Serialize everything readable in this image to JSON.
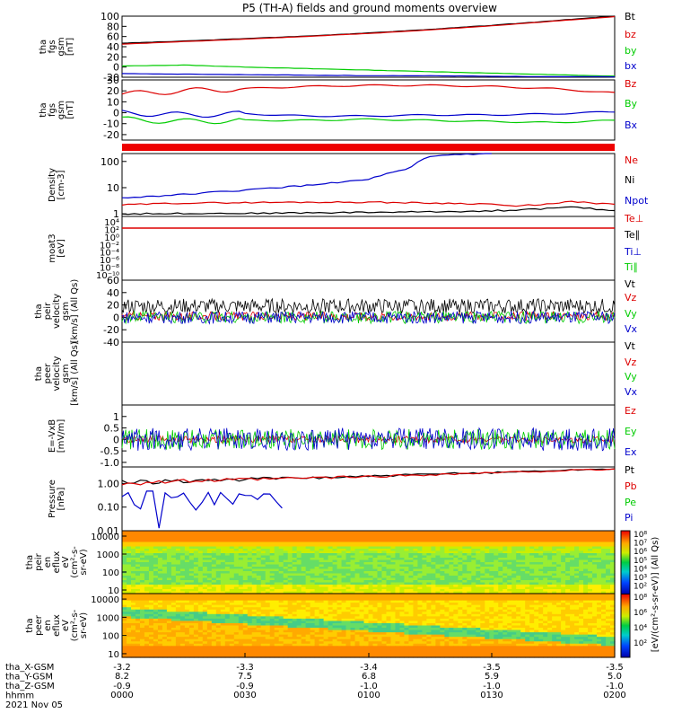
{
  "title": "P5 (TH-A) fields and ground moments overview",
  "chart_data": [
    {
      "type": "line",
      "ylabel": [
        "tha",
        "fgs",
        "gsm",
        "[nT]"
      ],
      "ylim": [
        -20,
        100
      ],
      "yticks": [
        100,
        80,
        60,
        40,
        20,
        0,
        -20
      ],
      "series": [
        {
          "name": "Bt",
          "color": "#000000",
          "x": [
            0,
            15,
            30,
            45,
            60,
            75,
            90,
            105,
            120
          ],
          "y": [
            47,
            51,
            56,
            61,
            67,
            74,
            82,
            91,
            100
          ]
        },
        {
          "name": "bz",
          "color": "#dd0000",
          "x": [
            0,
            15,
            30,
            45,
            60,
            75,
            90,
            105,
            120
          ],
          "y": [
            45,
            50,
            55,
            60,
            66,
            73,
            81,
            90,
            99
          ]
        },
        {
          "name": "by",
          "color": "#00cc00",
          "x": [
            0,
            15,
            30,
            45,
            60,
            75,
            90,
            105,
            120
          ],
          "y": [
            2,
            4,
            0,
            -3,
            -6,
            -9,
            -12,
            -15,
            -18
          ]
        },
        {
          "name": "bx",
          "color": "#0000cc",
          "x": [
            0,
            15,
            30,
            45,
            60,
            75,
            90,
            105,
            120
          ],
          "y": [
            -13,
            -14,
            -15,
            -16,
            -17,
            -17,
            -18,
            -19,
            -19
          ]
        }
      ]
    },
    {
      "type": "line",
      "ylabel": [
        "tha",
        "fgs",
        "gsm",
        "[nT]"
      ],
      "ylim": [
        -25,
        30
      ],
      "yticks": [
        30,
        20,
        10,
        0,
        -10,
        -20
      ],
      "series": [
        {
          "name": "Bz",
          "color": "#dd0000",
          "x": [
            0,
            15,
            30,
            45,
            60,
            75,
            90,
            105,
            120
          ],
          "y": [
            17,
            20,
            22,
            24,
            25,
            25,
            24,
            22,
            18
          ]
        },
        {
          "name": "By",
          "color": "#00cc00",
          "x": [
            0,
            15,
            30,
            45,
            60,
            75,
            90,
            105,
            120
          ],
          "y": [
            -6,
            -8,
            -7,
            -7,
            -6,
            -7,
            -8,
            -9,
            -7
          ]
        },
        {
          "name": "Bx",
          "color": "#0000cc",
          "x": [
            0,
            15,
            30,
            45,
            60,
            75,
            90,
            105,
            120
          ],
          "y": [
            0,
            -2,
            -1,
            -3,
            -3,
            -2,
            -2,
            -1,
            1
          ]
        }
      ]
    },
    {
      "type": "line",
      "scale": "log",
      "ylabel": [
        "Density",
        "[cm-3]"
      ],
      "ylim": [
        0.8,
        200
      ],
      "yticks": [
        100,
        10,
        1
      ],
      "ytick_labels": [
        "100",
        "10",
        "1"
      ],
      "series": [
        {
          "name": "Ne",
          "color": "#dd0000",
          "x": [
            0,
            15,
            30,
            45,
            60,
            75,
            90,
            95,
            100,
            105,
            110,
            115,
            120
          ],
          "y": [
            2.2,
            2.6,
            2.7,
            2.8,
            2.8,
            2.6,
            2.4,
            1.9,
            2.2,
            2.4,
            3.0,
            2.5,
            2.3
          ]
        },
        {
          "name": "Ni",
          "color": "#000000",
          "x": [
            0,
            15,
            30,
            45,
            60,
            75,
            90,
            100,
            110,
            120
          ],
          "y": [
            1.0,
            1.05,
            1.05,
            1.1,
            1.15,
            1.2,
            1.3,
            1.5,
            1.8,
            1.3
          ]
        },
        {
          "name": "Npot",
          "color": "#0000cc",
          "x": [
            0,
            15,
            30,
            45,
            60,
            70,
            75,
            80,
            90
          ],
          "y": [
            4,
            5.5,
            8,
            12,
            20,
            50,
            150,
            180,
            200
          ]
        }
      ]
    },
    {
      "type": "line",
      "scale": "log",
      "ylabel": [
        "moat3",
        "[eV]"
      ],
      "ytick_labels": [
        "10⁴",
        "10²",
        "10⁰",
        "10⁻²",
        "10⁻⁴",
        "10⁻⁶",
        "10⁻⁸",
        "10⁻¹⁰"
      ],
      "series": [
        {
          "name": "Te⊥",
          "color": "#dd0000"
        },
        {
          "name": "Te∥",
          "color": "#000000"
        },
        {
          "name": "Ti⊥",
          "color": "#0000cc"
        },
        {
          "name": "Ti∥",
          "color": "#00cc00"
        }
      ]
    },
    {
      "type": "line",
      "ylabel": [
        "tha",
        "peir",
        "velocity",
        "gsm",
        "[km/s] (All Qs)"
      ],
      "ylim": [
        -40,
        60
      ],
      "yticks": [
        60,
        40,
        20,
        0,
        -20,
        -40
      ],
      "series": [
        {
          "name": "Vt",
          "color": "#000000",
          "mean": 18,
          "amp": 12
        },
        {
          "name": "Vz",
          "color": "#dd0000",
          "mean": 2,
          "amp": 7
        },
        {
          "name": "Vy",
          "color": "#00cc00",
          "mean": 0,
          "amp": 10
        },
        {
          "name": "Vx",
          "color": "#0000cc",
          "mean": 0,
          "amp": 10
        }
      ]
    },
    {
      "type": "line",
      "ylabel": [
        "tha",
        "peer",
        "velocity",
        "gsm",
        "[km/s] (All Qs)"
      ],
      "series": [
        {
          "name": "Vt",
          "color": "#000000"
        },
        {
          "name": "Vz",
          "color": "#dd0000"
        },
        {
          "name": "Vy",
          "color": "#00cc00"
        },
        {
          "name": "Vx",
          "color": "#0000cc"
        }
      ]
    },
    {
      "type": "line",
      "ylabel": [
        "E=-VxB",
        "[mV/m]"
      ],
      "ylim": [
        -1.2,
        1.5
      ],
      "yticks": [
        1,
        0.5,
        0,
        -0.5,
        -1
      ],
      "ytick_labels": [
        "1",
        "0.5",
        "0",
        "-0.5",
        "-1.0"
      ],
      "series": [
        {
          "name": "Ez",
          "color": "#dd0000",
          "mean": 0,
          "amp": 0.15
        },
        {
          "name": "Ey",
          "color": "#00cc00",
          "mean": 0,
          "amp": 0.45
        },
        {
          "name": "Ex",
          "color": "#0000cc",
          "mean": 0,
          "amp": 0.5
        }
      ]
    },
    {
      "type": "line",
      "scale": "log",
      "ylabel": [
        "Pressure",
        "[nPa]"
      ],
      "ylim": [
        0.01,
        5
      ],
      "yticks": [
        1,
        0.1,
        0.01
      ],
      "ytick_labels": [
        "1.00",
        "0.10",
        "0.01"
      ],
      "series": [
        {
          "name": "Pt",
          "color": "#000000",
          "x": [
            0,
            30,
            60,
            90,
            120
          ],
          "y": [
            1.1,
            1.5,
            2.0,
            2.9,
            4.2
          ]
        },
        {
          "name": "Pb",
          "color": "#dd0000",
          "x": [
            0,
            30,
            60,
            90,
            120
          ],
          "y": [
            1.05,
            1.45,
            1.95,
            2.8,
            4.0
          ]
        },
        {
          "name": "Pe",
          "color": "#00cc00",
          "x": [
            0,
            30,
            60,
            90,
            120
          ],
          "y": [
            0.02,
            0.015,
            0.015,
            0.016,
            0.02
          ]
        },
        {
          "name": "Pi",
          "color": "#0000cc",
          "x": [
            0,
            30,
            60,
            90,
            120
          ],
          "y": [
            0.25,
            0.22,
            0.21,
            0.22,
            0.23
          ]
        }
      ]
    },
    {
      "type": "heatmap",
      "ylabel": [
        "tha",
        "peir",
        "en",
        "eflux",
        "eV",
        "(cm²-s-",
        "sr-eV)"
      ],
      "yticks": [
        10000,
        1000,
        100,
        10
      ],
      "ytick_labels": [
        "10000",
        "1000",
        "100",
        "10"
      ]
    },
    {
      "type": "heatmap",
      "ylabel": [
        "tha",
        "peer",
        "en",
        "eflux",
        "eV",
        "(cm²-s-",
        "sr-eV)"
      ],
      "yticks": [
        10000,
        1000,
        100,
        10
      ],
      "ytick_labels": [
        "10000",
        "1000",
        "100",
        "10"
      ]
    }
  ],
  "colorbar": {
    "label": "[eV/(cm²-s-sr-eV)] (All Qs)",
    "tick_labels_top": [
      "10⁸",
      "10⁷",
      "10⁶",
      "10⁵",
      "10⁴",
      "10³",
      "10²"
    ],
    "tick_labels_bottom": [
      "10⁸",
      "10⁶",
      "10⁴",
      "10²"
    ]
  },
  "x_axis": {
    "row_labels": [
      "tha_X-GSM",
      "tha_Y-GSM",
      "tha_Z-GSM",
      "hhmm",
      "2021 Nov 05"
    ],
    "ticks": [
      {
        "x": "-3.2",
        "y": "8.2",
        "z": "-0.9",
        "hhmm": "0000"
      },
      {
        "x": "-3.3",
        "y": "7.5",
        "z": "-0.9",
        "hhmm": "0030"
      },
      {
        "x": "-3.4",
        "y": "6.8",
        "z": "-1.0",
        "hhmm": "0100"
      },
      {
        "x": "-3.5",
        "y": "5.9",
        "z": "-1.0",
        "hhmm": "0130"
      },
      {
        "x": "-3.5",
        "y": "5.0",
        "z": "-1.0",
        "hhmm": "0200"
      }
    ]
  }
}
